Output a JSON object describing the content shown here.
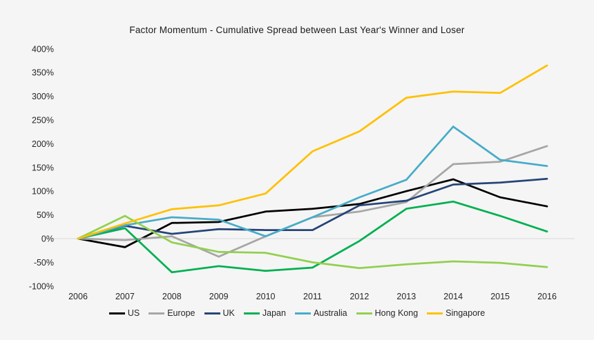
{
  "chart_data": {
    "type": "line",
    "title": "Factor Momentum - Cumulative Spread between Last Year's Winner and Loser",
    "xlabel": "",
    "ylabel": "",
    "unit": "%",
    "x": [
      2006,
      2007,
      2008,
      2009,
      2010,
      2011,
      2012,
      2013,
      2014,
      2015,
      2016
    ],
    "x_tick_labels": [
      "2006",
      "2007",
      "2008",
      "2009",
      "2010",
      "2011",
      "2012",
      "2013",
      "2014",
      "2015",
      "2016"
    ],
    "ylim": [
      -100,
      400
    ],
    "y_ticks": [
      400,
      350,
      300,
      250,
      200,
      150,
      100,
      50,
      0,
      -50,
      -100
    ],
    "y_tick_labels": [
      "400%",
      "350%",
      "300%",
      "250%",
      "200%",
      "150%",
      "100%",
      "50%",
      "0%",
      "-50%",
      "-100%"
    ],
    "grid": "zero-line-only",
    "legend_position": "bottom",
    "background_color": "#f5f5f5",
    "zero_line_color": "#d9d9d9",
    "series": [
      {
        "name": "US",
        "color": "#000000",
        "values": [
          0,
          -18,
          33,
          35,
          57,
          63,
          73,
          100,
          125,
          87,
          68
        ]
      },
      {
        "name": "Europe",
        "color": "#a6a6a6",
        "values": [
          0,
          -3,
          5,
          -38,
          5,
          45,
          57,
          77,
          157,
          162,
          195
        ]
      },
      {
        "name": "UK",
        "color": "#264478",
        "values": [
          0,
          27,
          10,
          20,
          18,
          18,
          70,
          80,
          114,
          118,
          126
        ]
      },
      {
        "name": "Japan",
        "color": "#00b050",
        "values": [
          0,
          22,
          -71,
          -58,
          -68,
          -61,
          -5,
          63,
          78,
          48,
          15
        ]
      },
      {
        "name": "Australia",
        "color": "#47acc9",
        "values": [
          0,
          28,
          45,
          40,
          5,
          45,
          87,
          124,
          236,
          166,
          153
        ]
      },
      {
        "name": "Hong Kong",
        "color": "#92d050",
        "values": [
          0,
          48,
          -8,
          -28,
          -30,
          -50,
          -62,
          -54,
          -48,
          -51,
          -60
        ]
      },
      {
        "name": "Singapore",
        "color": "#ffc000",
        "values": [
          0,
          32,
          62,
          70,
          95,
          184,
          226,
          297,
          310,
          307,
          365
        ]
      }
    ]
  }
}
